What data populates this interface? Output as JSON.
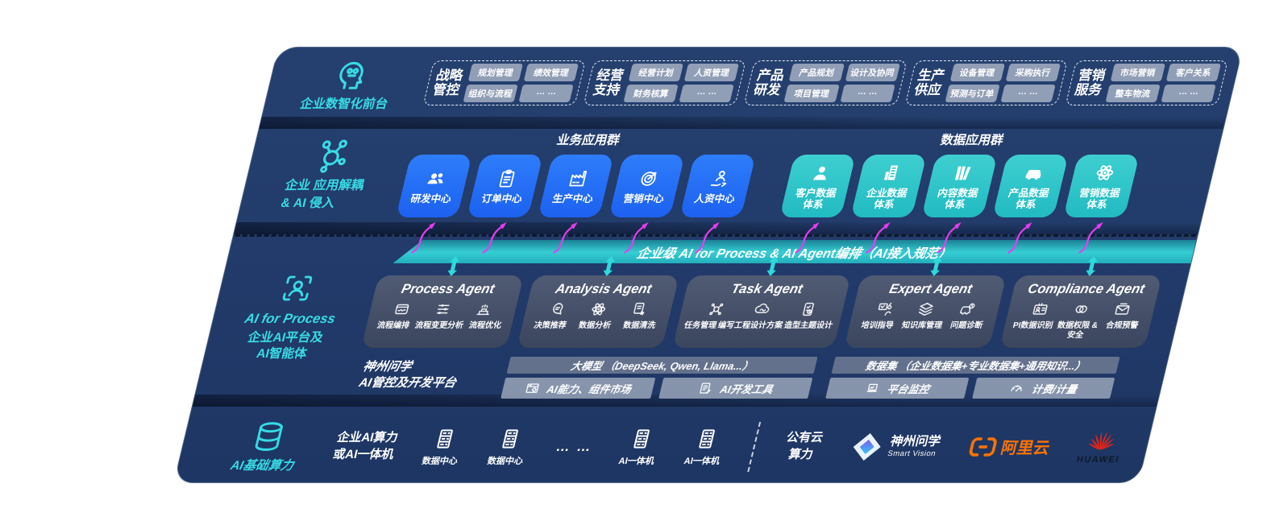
{
  "colors": {
    "panel_navy": "#213a6a",
    "accent_teal": "#38dce6",
    "box_blue": "#2470f6",
    "box_teal": "#2bc7c9",
    "bar_teal": "#2fc9cf",
    "arrow_magenta": "#e53df0",
    "aliyun_orange": "#ff7300",
    "huawei_red": "#e1251b"
  },
  "front_office": {
    "label": "企业数智化前台",
    "groups": [
      {
        "title": "战略\n管控",
        "pills": [
          "规划管理",
          "绩效管理",
          "组织与流程",
          "… …"
        ]
      },
      {
        "title": "经营\n支持",
        "pills": [
          "经营计划",
          "人资管理",
          "财务核算",
          "… …"
        ]
      },
      {
        "title": "产品\n研发",
        "pills": [
          "产品规划",
          "设计及协同",
          "项目管理",
          "… …"
        ]
      },
      {
        "title": "生产\n供应",
        "pills": [
          "设备管理",
          "采购执行",
          "预测与订单",
          "… …"
        ]
      },
      {
        "title": "营销\n服务",
        "pills": [
          "市场营销",
          "客户关系",
          "整车物流",
          "… …"
        ]
      }
    ]
  },
  "app_layer": {
    "label": "企业 应用解耦\n& AI 侵入",
    "business_group": {
      "title": "业务应用群",
      "items": [
        {
          "label": "研发中心",
          "icon": "people"
        },
        {
          "label": "订单中心",
          "icon": "clipboard"
        },
        {
          "label": "生产中心",
          "icon": "factory"
        },
        {
          "label": "营销中心",
          "icon": "target"
        },
        {
          "label": "人资中心",
          "icon": "person-chart"
        }
      ]
    },
    "data_group": {
      "title": "数据应用群",
      "items": [
        {
          "label": "客户数据\n体系",
          "icon": "user"
        },
        {
          "label": "企业数据\n体系",
          "icon": "building"
        },
        {
          "label": "内容数据\n体系",
          "icon": "books"
        },
        {
          "label": "产品数据\n体系",
          "icon": "car"
        },
        {
          "label": "营销数据\n体系",
          "icon": "atom"
        }
      ]
    }
  },
  "orchestration_bar": {
    "label": "企业级 AI for Process & AI Agent编排（AI接入规范）"
  },
  "ai_layer": {
    "label_en": "AI for Process",
    "label_cn": "企业AI平台及\nAI智能体",
    "agents": [
      {
        "title": "Process Agent",
        "items": [
          {
            "label": "流程编排",
            "icon": "workflow"
          },
          {
            "label": "流程变更分析",
            "icon": "sliders"
          },
          {
            "label": "流程优化",
            "icon": "optimize"
          }
        ]
      },
      {
        "title": "Analysis Agent",
        "items": [
          {
            "label": "决策推荐",
            "icon": "brain-chat"
          },
          {
            "label": "数据分析",
            "icon": "atom"
          },
          {
            "label": "数据清洗",
            "icon": "doc-clean"
          }
        ]
      },
      {
        "title": "Task Agent",
        "items": [
          {
            "label": "任务管理",
            "icon": "robot-grid"
          },
          {
            "label": "编写工程设计方案",
            "icon": "cloud-pen"
          },
          {
            "label": "造型主题设计",
            "icon": "tablet-check"
          }
        ]
      },
      {
        "title": "Expert Agent",
        "items": [
          {
            "label": "培训指导",
            "icon": "training"
          },
          {
            "label": "知识库管理",
            "icon": "stack"
          },
          {
            "label": "问题诊断",
            "icon": "car-diagnose"
          }
        ]
      },
      {
        "title": "Compliance Agent",
        "items": [
          {
            "label": "PI数据识别",
            "icon": "id-card"
          },
          {
            "label": "数据权限 &\n安全",
            "icon": "link-rings"
          },
          {
            "label": "合规预警",
            "icon": "mail-alert"
          }
        ]
      }
    ],
    "platform": {
      "label": "神州问学\nAI管控及开发平台",
      "model_bar": "大模型 （DeepSeek, Qwen, Llama...）",
      "model_tools": [
        {
          "label": "AI能力、组件市场",
          "icon": "window-gear"
        },
        {
          "label": "AI开发工具",
          "icon": "doc-code"
        }
      ],
      "dataset_bar": "数据集 （企业数据集+专业数据集+通用知识...）",
      "dataset_tools": [
        {
          "label": "平台监控",
          "icon": "laptop"
        },
        {
          "label": "计费/计量",
          "icon": "gauge"
        }
      ]
    }
  },
  "infra_layer": {
    "label": "AI基础算力",
    "compute_label": "企业AI算力\n或AI一体机",
    "datacenter1": "数据中心",
    "datacenter2": "数据中心",
    "dots": "… …",
    "allinone1": "AI一体机",
    "allinone2": "AI一体机",
    "public_cloud": "公有云\n算力",
    "logos": {
      "smartvision": {
        "title": "神州问学",
        "sub": "Smart Vision"
      },
      "aliyun": {
        "title": "阿里云"
      },
      "huawei": {
        "title": "HUAWEI"
      }
    }
  }
}
